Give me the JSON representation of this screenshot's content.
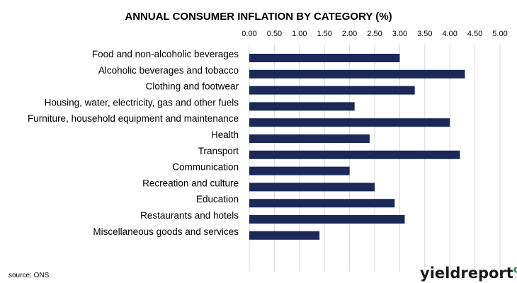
{
  "chart_data": {
    "type": "bar",
    "orientation": "horizontal",
    "title": "ANNUAL CONSUMER INFLATION BY CATEGORY (%)",
    "categories": [
      "Food and non-alcoholic beverages",
      "Alcoholic beverages and tobacco",
      "Clothing and footwear",
      "Housing, water, electricity, gas and other fuels",
      "Furniture, household equipment and maintenance",
      "Health",
      "Transport",
      "Communication",
      "Recreation and culture",
      "Education",
      "Restaurants and hotels",
      "Miscellaneous goods and services"
    ],
    "values": [
      3.0,
      4.3,
      3.3,
      2.1,
      4.0,
      2.4,
      4.2,
      2.0,
      2.5,
      2.9,
      3.1,
      1.4
    ],
    "xlim": [
      0,
      5
    ],
    "x_ticks": [
      "0.00",
      "0.50",
      "1.00",
      "1.50",
      "2.00",
      "2.50",
      "3.00",
      "3.50",
      "4.00",
      "4.50",
      "5.00"
    ],
    "x_axis_position": "top",
    "grid": true,
    "legend": "none",
    "bar_color": "#1b2858",
    "grid_color": "#d9d9d9"
  },
  "source": "source: ONS",
  "brand": {
    "part1": "yield",
    "part2": "report",
    "symbol": "%",
    "color_dark": "#1a1a1a",
    "color_green": "#0f8a3c",
    "color_red": "#d62828"
  }
}
